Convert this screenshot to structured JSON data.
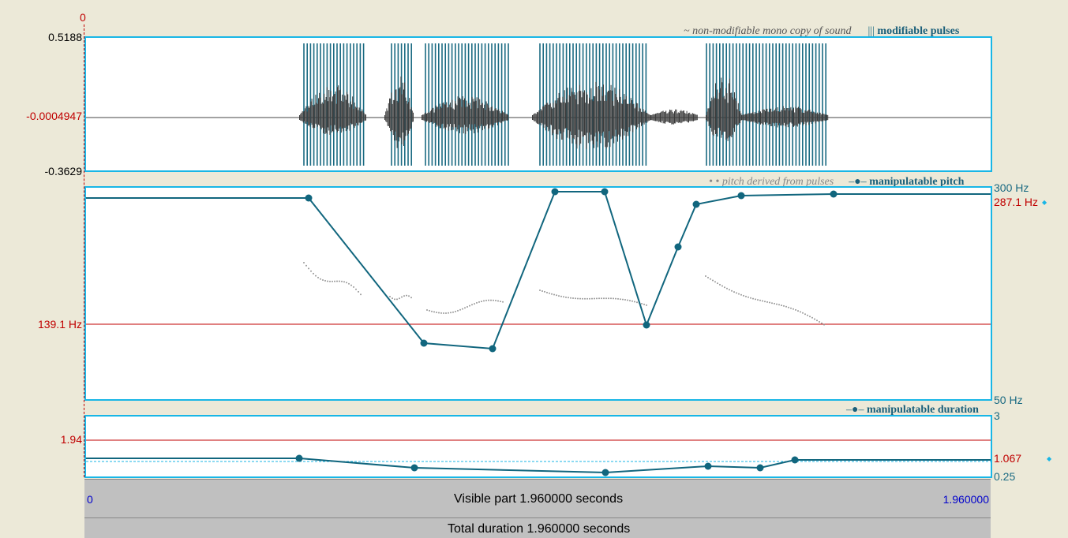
{
  "cursor_label": "0",
  "sound": {
    "y_max": "0.5188",
    "y_mid": "-0.0004947",
    "y_min": "-0.3629",
    "legend_sound": "~ non-modifiable mono copy of sound",
    "legend_pulses_symbol": "|||",
    "legend_pulses": "modifiable pulses"
  },
  "pitch": {
    "legend_derived_symbol": "• •",
    "legend_derived": "pitch derived from pulses",
    "legend_manip_symbol": "–●–",
    "legend_manip": "manipulatable pitch",
    "top_label": "300 Hz",
    "current_label": "287.1 Hz",
    "ref_label": "139.1 Hz",
    "bottom_label": "50 Hz",
    "current_marker": "◆"
  },
  "duration": {
    "legend_symbol": "–●–",
    "legend": "manipulatable duration",
    "top_label": "3",
    "ref_label": "1.94",
    "current_label": "1.067",
    "bottom_label": "0.25",
    "current_marker": "◆"
  },
  "bars": {
    "visible_start": "0",
    "visible_text": "Visible part 1.960000 seconds",
    "visible_end": "1.960000",
    "total_text": "Total duration 1.960000 seconds"
  },
  "colors": {
    "panel_border": "#18b6e6",
    "pulse": "#1a6a82",
    "manip": "#11667e",
    "reference_line": "#c00000"
  }
}
